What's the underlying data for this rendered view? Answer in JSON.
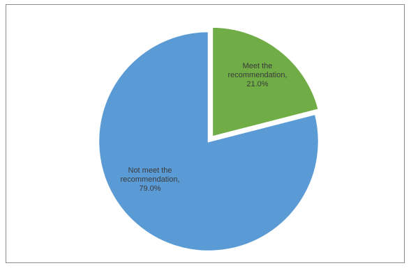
{
  "chart_data": {
    "type": "pie",
    "title": "",
    "slices": [
      {
        "label_lines": [
          "Meet the",
          "recommendation,",
          "21.0%"
        ],
        "value": 21.0,
        "color": "#70ad47"
      },
      {
        "label_lines": [
          "Not meet the",
          "recommendation,",
          "79.0%"
        ],
        "value": 79.0,
        "color": "#5b9bd5"
      }
    ],
    "legend": "none",
    "exploded_slice": 0
  }
}
